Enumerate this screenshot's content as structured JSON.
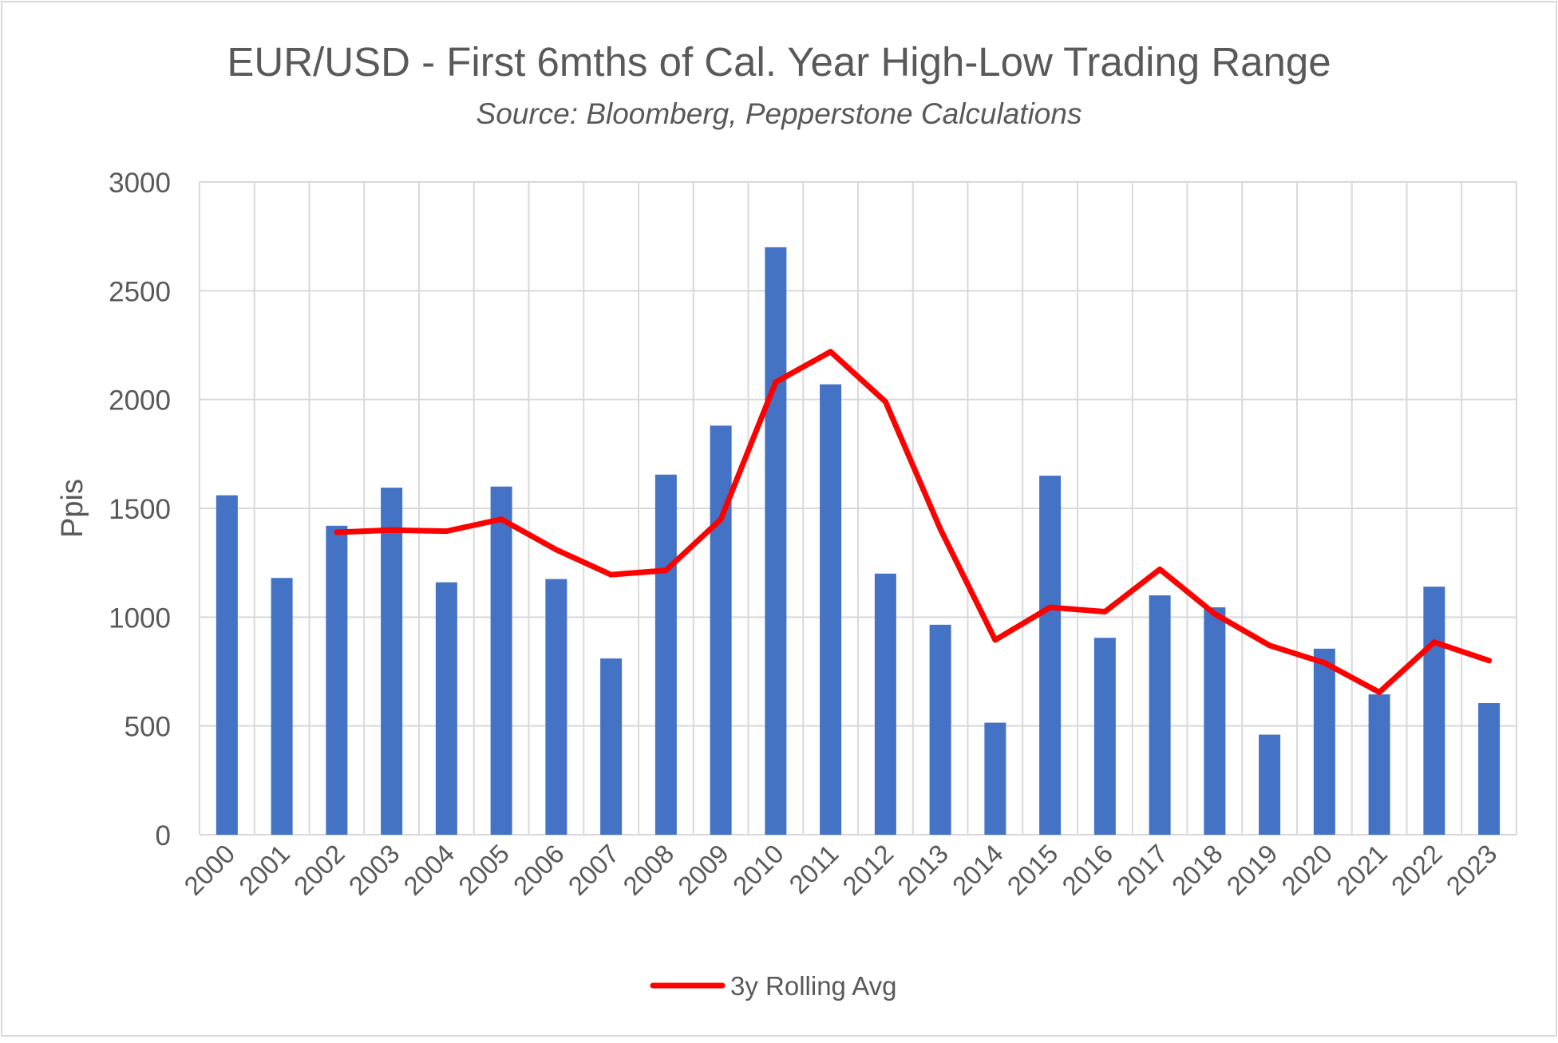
{
  "chart_data": {
    "type": "bar",
    "title": "EUR/USD - First 6mths of Cal. Year High-Low Trading Range",
    "subtitle": "Source: Bloomberg, Pepperstone Calculations",
    "xlabel": "",
    "ylabel": "Ppis",
    "ylim": [
      0,
      3000
    ],
    "yticks": [
      0,
      500,
      1000,
      1500,
      2000,
      2500,
      3000
    ],
    "grid": true,
    "legend_position": "bottom",
    "categories": [
      "2000",
      "2001",
      "2002",
      "2003",
      "2004",
      "2005",
      "2006",
      "2007",
      "2008",
      "2009",
      "2010",
      "2011",
      "2012",
      "2013",
      "2014",
      "2015",
      "2016",
      "2017",
      "2018",
      "2019",
      "2020",
      "2021",
      "2022",
      "2023"
    ],
    "series": [
      {
        "type": "bar",
        "color": "#4472C4",
        "values": [
          1560,
          1180,
          1420,
          1595,
          1160,
          1600,
          1175,
          810,
          1655,
          1880,
          2700,
          2070,
          1200,
          965,
          515,
          1650,
          905,
          1100,
          1045,
          460,
          855,
          645,
          1140,
          605
        ]
      },
      {
        "type": "line",
        "name": "3y Rolling Avg",
        "color": "#FF0000",
        "values": [
          null,
          null,
          1390,
          1400,
          1395,
          1450,
          1310,
          1195,
          1215,
          1450,
          2080,
          2220,
          1990,
          1405,
          895,
          1045,
          1025,
          1220,
          1015,
          870,
          790,
          655,
          885,
          800
        ]
      }
    ]
  }
}
